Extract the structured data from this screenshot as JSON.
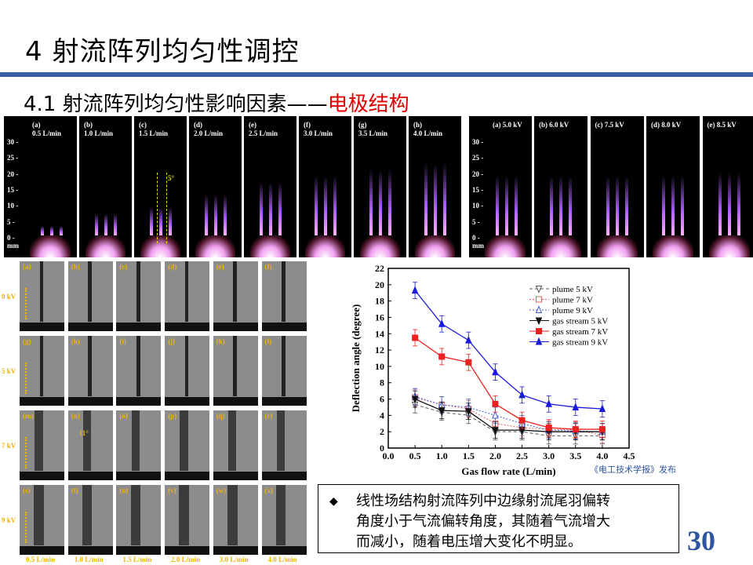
{
  "slide": {
    "title": "4  射流阵列均匀性调控",
    "subtitle_prefix": "4.1  射流阵列均匀性影响因素——",
    "subtitle_highlight": "电极结构",
    "page_number": "30",
    "accent_color": "#3a5fa6",
    "highlight_color": "#e00000"
  },
  "photos_flow": {
    "labels": [
      "(a)\n0.5 L/min",
      "(b)\n1.0 L/min",
      "(c)\n1.5 L/min",
      "(d)\n2.0 L/min",
      "(e)\n2.5 L/min",
      "(f)\n3.0 L/min",
      "(g)\n3.5 L/min",
      "(h)\n4.0 L/min"
    ],
    "plume_lengths_mm": [
      3,
      7,
      9,
      13,
      17,
      19,
      21,
      23
    ],
    "axis_ticks": [
      "30",
      "25",
      "20",
      "15",
      "10",
      "5",
      "0"
    ],
    "axis_unit": "mm",
    "angle_annotation": "5°"
  },
  "photos_voltage": {
    "labels": [
      "(a) 5.0 kV",
      "(b) 6.0 kV",
      "(c) 7.5 kV",
      "(d) 8.0 kV",
      "(e) 8.5 kV"
    ],
    "plume_lengths_mm": [
      19,
      19,
      19,
      19,
      20
    ],
    "axis_ticks": [
      "30",
      "25",
      "20",
      "15",
      "10",
      "5",
      "0"
    ],
    "axis_unit": "mm"
  },
  "schlieren": {
    "row_labels": [
      "0 kV",
      "5 kV",
      "7 kV",
      "9 kV"
    ],
    "col_labels": [
      "0.5 L/min",
      "1.0 L/min",
      "1.5 L/min",
      "2.0 L/min",
      "3.0 L/min",
      "4.0 L/min"
    ],
    "panel_labels": [
      "(a)",
      "(b)",
      "(c)",
      "(d)",
      "(e)",
      "(f)",
      "(g)",
      "(h)",
      "(i)",
      "(j)",
      "(k)",
      "(l)",
      "(m)",
      "(n)",
      "(o)",
      "(p)",
      "(q)",
      "(r)",
      "(s)",
      "(t)",
      "(u)",
      "(v)",
      "(w)",
      "(x)"
    ],
    "angle_annotation": "11°"
  },
  "chart_data": {
    "type": "line",
    "xlabel": "Gas flow rate (L/min)",
    "ylabel": "Deflection angle (degree)",
    "xlim": [
      0,
      4.5
    ],
    "ylim": [
      0,
      22
    ],
    "xticks": [
      0.0,
      0.5,
      1.0,
      1.5,
      2.0,
      2.5,
      3.0,
      3.5,
      4.0,
      4.5
    ],
    "yticks": [
      0,
      2,
      4,
      6,
      8,
      10,
      12,
      14,
      16,
      18,
      20,
      22
    ],
    "legend_position": "top-right",
    "x": [
      0.5,
      1.0,
      1.5,
      2.0,
      2.5,
      3.0,
      3.5,
      4.0
    ],
    "error": 1.0,
    "series": [
      {
        "name": "plume 5 kV",
        "color": "#555555",
        "dash": "4,3",
        "marker": "tri-down-open",
        "values": [
          5.3,
          4.4,
          4.0,
          2.0,
          2.0,
          1.5,
          1.5,
          1.5
        ]
      },
      {
        "name": "plume 7 kV",
        "color": "#e06060",
        "dash": "2,2",
        "marker": "square-open",
        "values": [
          6.2,
          5.3,
          4.8,
          3.0,
          2.5,
          2.3,
          2.2,
          1.6
        ]
      },
      {
        "name": "plume 9 kV",
        "color": "#4060e0",
        "dash": "2,2",
        "marker": "tri-up-open",
        "values": [
          6.3,
          5.3,
          5.0,
          4.0,
          3.0,
          2.2,
          2.1,
          2.0
        ]
      },
      {
        "name": "gas stream 5 kV",
        "color": "#111111",
        "dash": "",
        "marker": "tri-down",
        "values": [
          6.0,
          4.6,
          4.5,
          2.2,
          2.2,
          2.0,
          2.0,
          2.0
        ]
      },
      {
        "name": "gas stream 7 kV",
        "color": "#ee2020",
        "dash": "",
        "marker": "square",
        "values": [
          13.5,
          11.2,
          10.5,
          5.4,
          3.4,
          2.5,
          2.3,
          2.3
        ]
      },
      {
        "name": "gas stream 9 kV",
        "color": "#1a1add",
        "dash": "",
        "marker": "tri-up",
        "values": [
          19.3,
          15.2,
          13.2,
          9.3,
          6.5,
          5.4,
          5.0,
          4.8
        ]
      }
    ],
    "source_caption": "《电工技术学报》发布"
  },
  "conclusion": {
    "bullet": "◆",
    "lines": [
      "线性场结构射流阵列中边缘射流尾羽偏转",
      "角度小于气流偏转角度，其随着气流增大",
      "而减小，随着电压增大变化不明显。"
    ]
  }
}
